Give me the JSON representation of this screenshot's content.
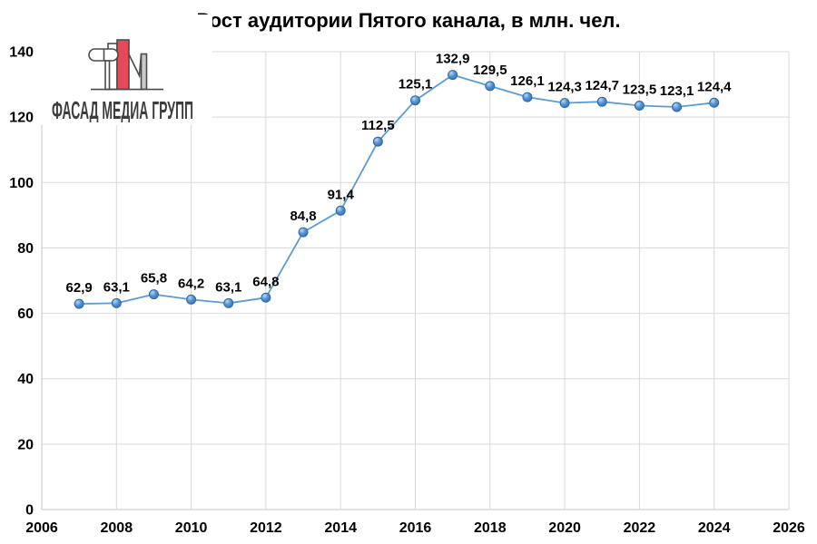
{
  "page": {
    "background": "#ffffff"
  },
  "logo": {
    "text": "ФАСАД МЕДИА ГРУПП",
    "colors": {
      "red": "#e6495a",
      "outline": "#4a4a4a",
      "gray": "#c9c9c9",
      "text": "#3d3d3d"
    }
  },
  "chart_data": {
    "type": "line",
    "title": "Рост аудитории Пятого канала, в млн. чел.",
    "x": [
      2007,
      2008,
      2009,
      2010,
      2011,
      2012,
      2013,
      2014,
      2015,
      2016,
      2017,
      2018,
      2019,
      2020,
      2021,
      2022,
      2023,
      2024
    ],
    "values": [
      62.9,
      63.1,
      65.8,
      64.2,
      63.1,
      64.8,
      84.8,
      91.4,
      112.5,
      125.1,
      132.9,
      129.5,
      126.1,
      124.3,
      124.7,
      123.5,
      123.1,
      124.4
    ],
    "point_labels": [
      "62,9",
      "63,1",
      "65,8",
      "64,2",
      "63,1",
      "64,8",
      "84,8",
      "91,4",
      "112,5",
      "125,1",
      "132,9",
      "129,5",
      "126,1",
      "124,3",
      "124,7",
      "123,5",
      "123,1",
      "124,4"
    ],
    "xlabel": "",
    "ylabel": "",
    "xlim": [
      2006,
      2026
    ],
    "ylim": [
      0,
      140
    ],
    "x_ticks": [
      "2006",
      "2008",
      "2010",
      "2012",
      "2014",
      "2016",
      "2018",
      "2020",
      "2022",
      "2024",
      "2026"
    ],
    "x_tick_values": [
      2006,
      2008,
      2010,
      2012,
      2014,
      2016,
      2018,
      2020,
      2022,
      2024,
      2026
    ],
    "y_ticks": [
      "0",
      "20",
      "40",
      "60",
      "80",
      "100",
      "120",
      "140"
    ],
    "y_tick_values": [
      0,
      20,
      40,
      60,
      80,
      100,
      120,
      140
    ],
    "grid": true,
    "legend": "none",
    "colors": {
      "line": "#5B9BD5",
      "marker_stroke": "#2c6aa8",
      "marker_light": "#bcd9f2",
      "marker_mid": "#5a95d5",
      "marker_dark": "#2f6dae",
      "gridline": "#D9D9D9",
      "axis_line": "#C6C6C6",
      "text": "#000000"
    }
  }
}
